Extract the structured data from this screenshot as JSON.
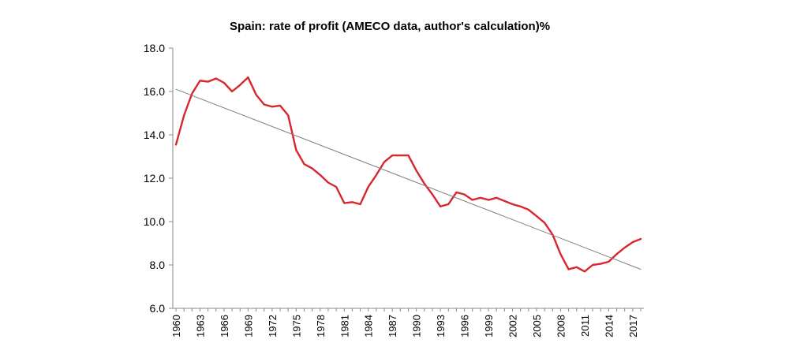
{
  "chart_data": {
    "type": "line",
    "title": "Spain: rate of profit (AMECO data, author's calculation)%",
    "xlabel": "",
    "ylabel": "",
    "ylim": [
      6.0,
      18.0
    ],
    "xlim": [
      1960,
      2018
    ],
    "yticks": [
      "6.0",
      "8.0",
      "10.0",
      "12.0",
      "14.0",
      "16.0",
      "18.0"
    ],
    "xticks": [
      "1960",
      "1963",
      "1966",
      "1969",
      "1972",
      "1975",
      "1978",
      "1981",
      "1984",
      "1987",
      "1990",
      "1993",
      "1996",
      "1999",
      "2002",
      "2005",
      "2008",
      "2011",
      "2014",
      "2017"
    ],
    "grid": false,
    "legend": "none",
    "series": [
      {
        "color": "#d9262c",
        "x": [
          1960,
          1961,
          1962,
          1963,
          1964,
          1965,
          1966,
          1967,
          1968,
          1969,
          1970,
          1971,
          1972,
          1973,
          1974,
          1975,
          1976,
          1977,
          1978,
          1979,
          1980,
          1981,
          1982,
          1983,
          1984,
          1985,
          1986,
          1987,
          1988,
          1989,
          1990,
          1991,
          1992,
          1993,
          1994,
          1995,
          1996,
          1997,
          1998,
          1999,
          2000,
          2001,
          2002,
          2003,
          2004,
          2005,
          2006,
          2007,
          2008,
          2009,
          2010,
          2011,
          2012,
          2013,
          2014,
          2015,
          2016,
          2017,
          2018
        ],
        "values": [
          13.55,
          14.9,
          15.9,
          16.5,
          16.45,
          16.6,
          16.4,
          16.0,
          16.3,
          16.65,
          15.85,
          15.4,
          15.3,
          15.35,
          14.9,
          13.3,
          12.65,
          12.45,
          12.15,
          11.8,
          11.6,
          10.85,
          10.9,
          10.8,
          11.6,
          12.15,
          12.75,
          13.05,
          13.05,
          13.05,
          12.35,
          11.75,
          11.25,
          10.7,
          10.8,
          11.35,
          11.25,
          11.0,
          11.1,
          11.0,
          11.1,
          10.95,
          10.8,
          10.7,
          10.55,
          10.25,
          9.95,
          9.4,
          8.5,
          7.8,
          7.9,
          7.7,
          8.0,
          8.05,
          8.15,
          8.5,
          8.8,
          9.05,
          9.2
        ]
      },
      {
        "color": "#7f7f7f",
        "x": [
          1960,
          2018
        ],
        "values": [
          16.1,
          7.8
        ]
      }
    ]
  }
}
